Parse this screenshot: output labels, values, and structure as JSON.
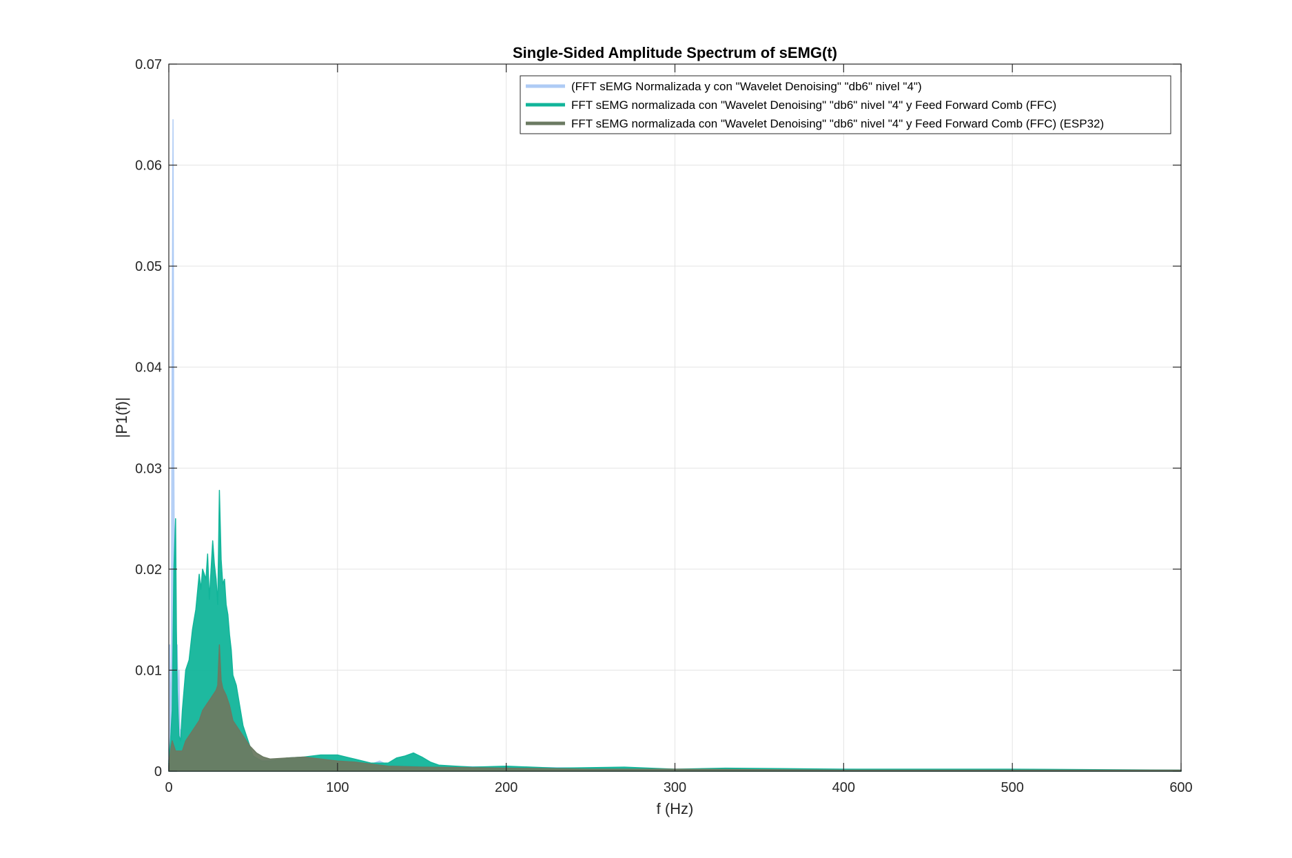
{
  "chart_data": {
    "type": "line",
    "title": "Single-Sided Amplitude Spectrum of sEMG(t)",
    "xlabel": "f (Hz)",
    "ylabel": "|P1(f)|",
    "xlim": [
      0,
      600
    ],
    "ylim": [
      0,
      0.07
    ],
    "xticks": [
      0,
      100,
      200,
      300,
      400,
      500,
      600
    ],
    "xtick_labels": [
      "0",
      "100",
      "200",
      "300",
      "400",
      "500",
      "600"
    ],
    "yticks": [
      0,
      0.01,
      0.02,
      0.03,
      0.04,
      0.05,
      0.06,
      0.07
    ],
    "ytick_labels": [
      "0",
      "0.01",
      "0.02",
      "0.03",
      "0.04",
      "0.05",
      "0.06",
      "0.07"
    ],
    "grid": true,
    "legend_position": "top-right",
    "series": [
      {
        "name": "(FFT sEMG Normalizada y con \"Wavelet Denoising\" \"db6\" nivel \"4\")",
        "color": "#aecbf5",
        "x": [
          0,
          0.5,
          1,
          1.5,
          2,
          2.5,
          3,
          3.5,
          4,
          4.5,
          5,
          5.5,
          6,
          6.5,
          7,
          7.5,
          8,
          9,
          10,
          11,
          12,
          14,
          16,
          20,
          25,
          30,
          40,
          50,
          60,
          80,
          100,
          120,
          125,
          130,
          150,
          200,
          250,
          300,
          400,
          500,
          600
        ],
        "values": [
          0.002,
          0.0125,
          0.004,
          0.011,
          0.043,
          0.0645,
          0.03,
          0.012,
          0.0143,
          0.009,
          0.0125,
          0.006,
          0.01,
          0.0042,
          0.004,
          0.0035,
          0.003,
          0.003,
          0.003,
          0.0025,
          0.0025,
          0.0022,
          0.002,
          0.0018,
          0.0016,
          0.0015,
          0.0014,
          0.0012,
          0.0011,
          0.001,
          0.0009,
          0.0007,
          0.001,
          0.0006,
          0.0005,
          0.0004,
          0.0003,
          0.0002,
          0.0002,
          0.0001,
          0.0001
        ]
      },
      {
        "name": "FFT sEMG normalizada con \"Wavelet Denoising\" \"db6\" nivel \"4\" y Feed Forward Comb (FFC)",
        "color": "#12b59a",
        "x": [
          0,
          1,
          2,
          3,
          4,
          4.5,
          5,
          6,
          7,
          8,
          10,
          12,
          14,
          15,
          16,
          18,
          19,
          20,
          22,
          23,
          24,
          26,
          27,
          28,
          29,
          30,
          31,
          32,
          33,
          34,
          35,
          36,
          37,
          38,
          40,
          42,
          44,
          46,
          48,
          50,
          55,
          60,
          70,
          80,
          90,
          100,
          110,
          120,
          130,
          135,
          140,
          145,
          150,
          155,
          160,
          170,
          180,
          200,
          230,
          270,
          300,
          330,
          400,
          500,
          600
        ],
        "values": [
          0.001,
          0.003,
          0.006,
          0.02,
          0.025,
          0.014,
          0.008,
          0.0035,
          0.003,
          0.006,
          0.01,
          0.011,
          0.014,
          0.015,
          0.016,
          0.0195,
          0.018,
          0.02,
          0.019,
          0.0215,
          0.017,
          0.0228,
          0.0205,
          0.019,
          0.0165,
          0.0278,
          0.021,
          0.0185,
          0.019,
          0.0165,
          0.0155,
          0.0135,
          0.012,
          0.0095,
          0.0085,
          0.0065,
          0.0045,
          0.0035,
          0.0025,
          0.0015,
          0.001,
          0.001,
          0.0013,
          0.0014,
          0.0016,
          0.0016,
          0.0012,
          0.0008,
          0.0008,
          0.0013,
          0.0015,
          0.0018,
          0.0014,
          0.0009,
          0.0006,
          0.0005,
          0.0004,
          0.0005,
          0.0003,
          0.0004,
          0.0002,
          0.0003,
          0.0002,
          0.0002,
          0.0001
        ]
      },
      {
        "name": "FFT sEMG normalizada con \"Wavelet Denoising\" \"db6\" nivel \"4\" y Feed Forward Comb (FFC) (ESP32)",
        "color": "#6b7a62",
        "x": [
          0,
          1,
          2,
          3,
          4,
          6,
          8,
          10,
          12,
          14,
          16,
          18,
          20,
          22,
          24,
          26,
          28,
          29,
          30,
          31,
          32,
          34,
          36,
          38,
          40,
          44,
          48,
          52,
          56,
          60,
          70,
          80,
          90,
          100,
          110,
          120,
          125,
          130,
          150,
          200,
          250,
          300,
          400,
          500,
          600
        ],
        "values": [
          0.0005,
          0.002,
          0.003,
          0.0025,
          0.002,
          0.002,
          0.002,
          0.003,
          0.0035,
          0.004,
          0.0045,
          0.005,
          0.006,
          0.0065,
          0.007,
          0.0075,
          0.008,
          0.0085,
          0.0125,
          0.009,
          0.0082,
          0.0075,
          0.0065,
          0.005,
          0.0045,
          0.0035,
          0.0025,
          0.0018,
          0.0014,
          0.0012,
          0.0013,
          0.0014,
          0.0012,
          0.001,
          0.0009,
          0.0007,
          0.0006,
          0.0005,
          0.0004,
          0.0003,
          0.0002,
          0.0002,
          0.0001,
          0.0001,
          0.0001
        ]
      }
    ]
  }
}
